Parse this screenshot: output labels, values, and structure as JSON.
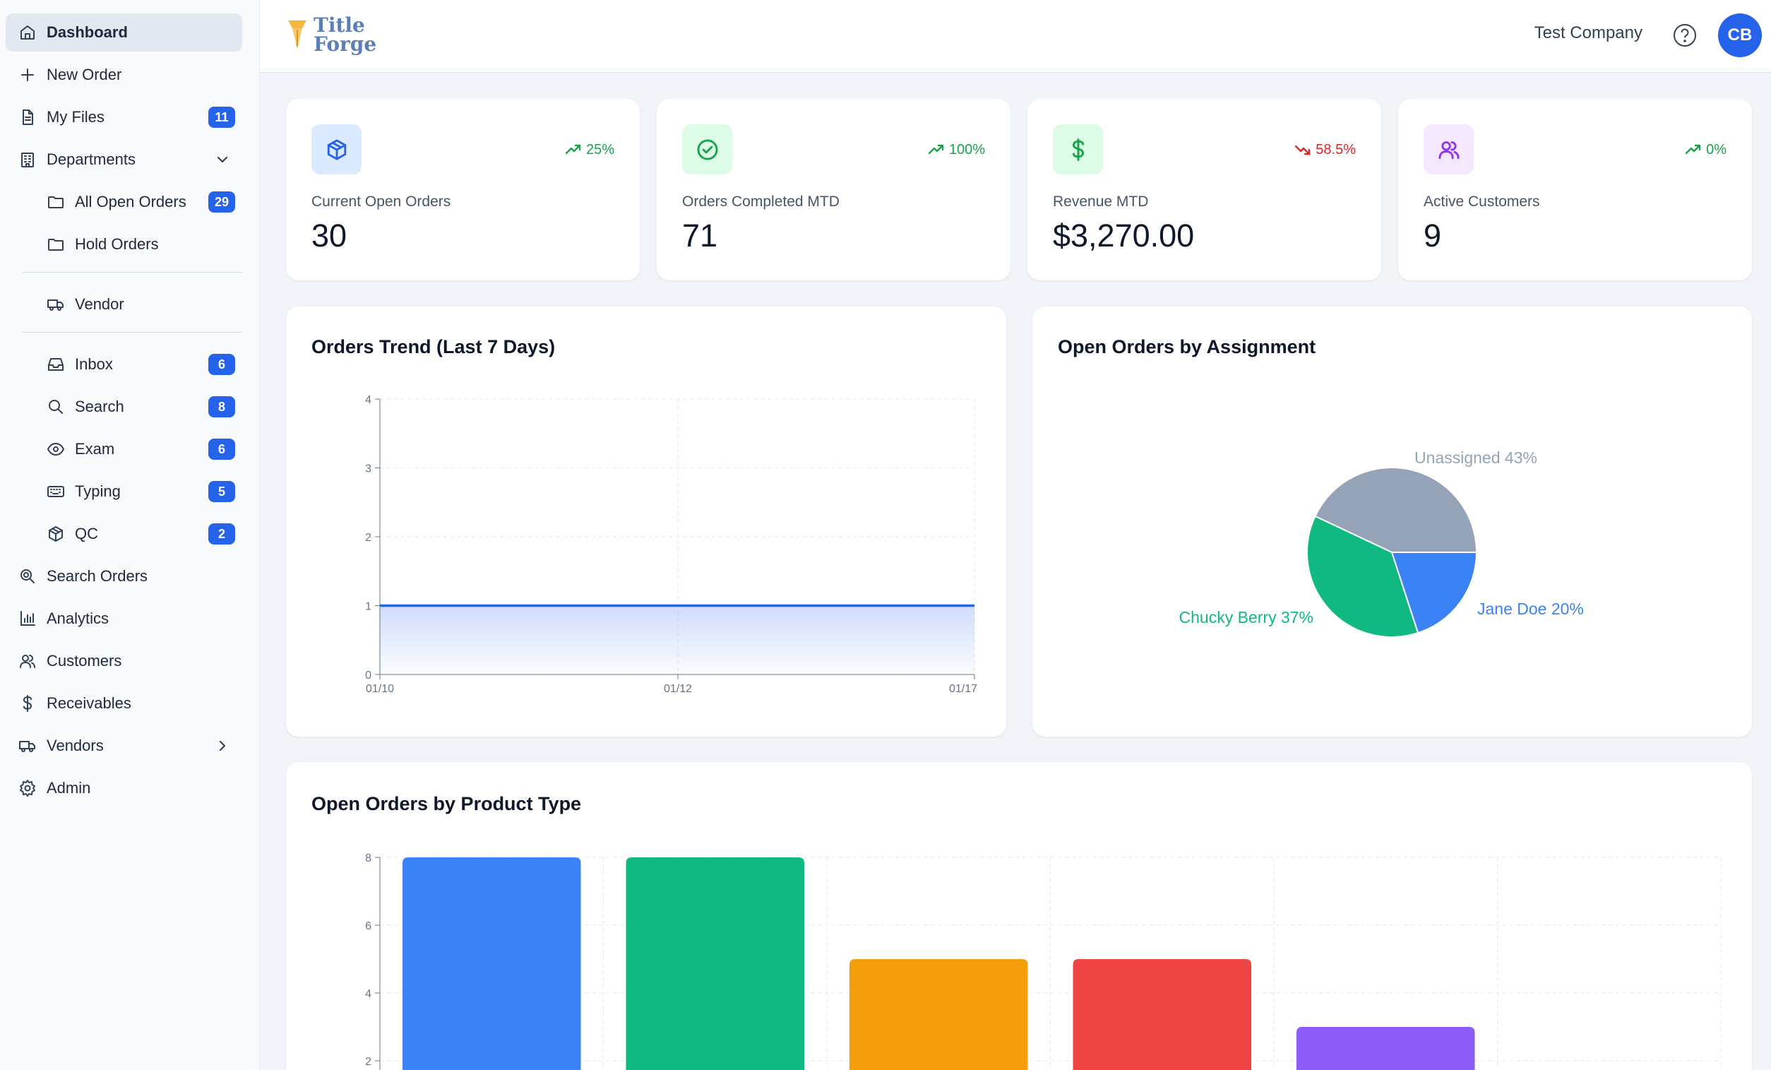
{
  "sidebar": {
    "items": [
      {
        "label": "Dashboard",
        "icon": "home-icon",
        "active": true
      },
      {
        "label": "New Order",
        "icon": "plus-icon"
      },
      {
        "label": "My Files",
        "icon": "file-icon",
        "badge": "11"
      },
      {
        "label": "Departments",
        "icon": "building-icon",
        "chevron": "down"
      },
      {
        "label": "All Open Orders",
        "icon": "folder-icon",
        "badge": "29",
        "sub": true
      },
      {
        "label": "Hold Orders",
        "icon": "folder-icon",
        "sub": true
      },
      {
        "label": "Vendor",
        "icon": "truck-icon",
        "sub": true
      },
      {
        "label": "Inbox",
        "icon": "inbox-icon",
        "badge": "6",
        "sub": true
      },
      {
        "label": "Search",
        "icon": "search-icon",
        "badge": "8",
        "sub": true
      },
      {
        "label": "Exam",
        "icon": "eye-icon",
        "badge": "6",
        "sub": true
      },
      {
        "label": "Typing",
        "icon": "keyboard-icon",
        "badge": "5",
        "sub": true
      },
      {
        "label": "QC",
        "icon": "box-icon",
        "badge": "2",
        "sub": true
      },
      {
        "label": "Search Orders",
        "icon": "search-zoom-icon"
      },
      {
        "label": "Analytics",
        "icon": "bar-chart-icon"
      },
      {
        "label": "Customers",
        "icon": "users-icon"
      },
      {
        "label": "Receivables",
        "icon": "dollar-icon"
      },
      {
        "label": "Vendors",
        "icon": "truck-icon",
        "chevron": "right"
      },
      {
        "label": "Admin",
        "icon": "gear-icon"
      }
    ]
  },
  "header": {
    "logo_line1": "Title",
    "logo_line2": "Forge",
    "company": "Test Company",
    "avatar_initials": "CB"
  },
  "stats": [
    {
      "label": "Current Open Orders",
      "value": "30",
      "change": "25%",
      "trend": "up",
      "icon": "box-icon",
      "color": "#2563eb",
      "bg": "#dbeafe"
    },
    {
      "label": "Orders Completed MTD",
      "value": "71",
      "change": "100%",
      "trend": "up",
      "icon": "check-circle-icon",
      "color": "#16a34a",
      "bg": "#dcfce7"
    },
    {
      "label": "Revenue MTD",
      "value": "$3,270.00",
      "change": "58.5%",
      "trend": "down",
      "icon": "dollar-icon",
      "color": "#16a34a",
      "bg": "#dcfce7"
    },
    {
      "label": "Active Customers",
      "value": "9",
      "change": "0%",
      "trend": "up",
      "icon": "users-icon",
      "color": "#9333ea",
      "bg": "#f3e8ff"
    }
  ],
  "colors": {
    "up": "#16a34a",
    "down": "#dc2626",
    "accent": "#2563eb"
  },
  "chart_data": [
    {
      "type": "area",
      "title": "Orders Trend (Last 7 Days)",
      "x": [
        "01/10",
        "01/12",
        "01/17"
      ],
      "values": [
        1,
        1,
        1
      ],
      "ylim": [
        0,
        4
      ],
      "yticks": [
        "0",
        "1",
        "2",
        "3",
        "4"
      ],
      "grid": true,
      "color": "#2563eb"
    },
    {
      "type": "pie",
      "title": "Open Orders by Assignment",
      "slices": [
        {
          "label": "Unassigned 43%",
          "value": 43,
          "color": "#94a3b8"
        },
        {
          "label": "Jane Doe 20%",
          "value": 20,
          "color": "#3b82f6"
        },
        {
          "label": "Chucky Berry 37%",
          "value": 37,
          "color": "#10b981"
        }
      ]
    },
    {
      "type": "bar",
      "title": "Open Orders by Product Type",
      "values": [
        8,
        8,
        5,
        5,
        3
      ],
      "colors": [
        "#3b82f6",
        "#10b981",
        "#f59e0b",
        "#ef4444",
        "#8b5cf6"
      ],
      "ylim": [
        0,
        8
      ],
      "yticks": [
        "2",
        "4",
        "6",
        "8"
      ],
      "grid": true
    }
  ]
}
